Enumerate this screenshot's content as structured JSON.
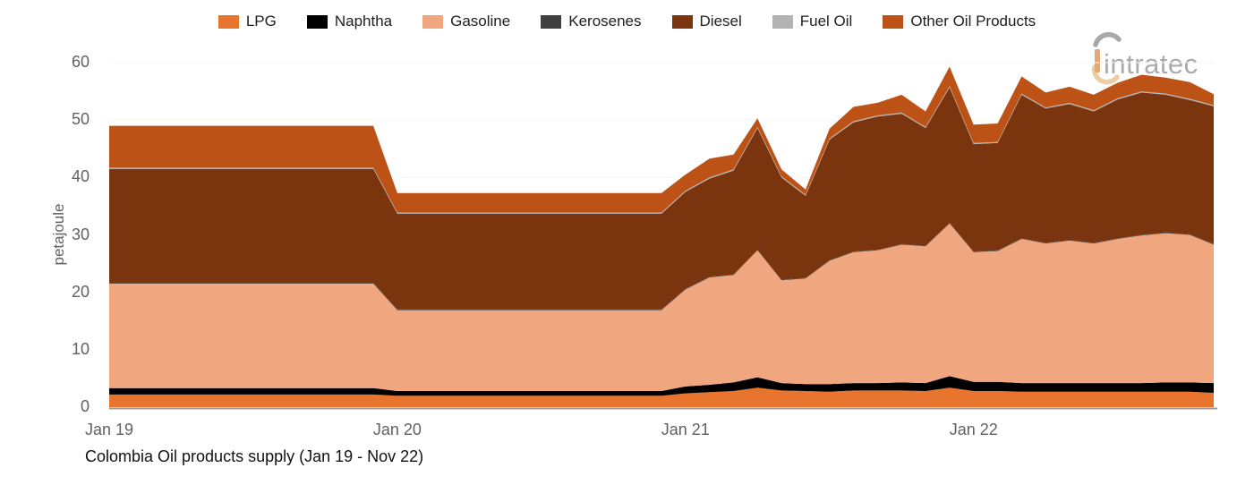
{
  "chart_data": {
    "type": "area",
    "stacked": true,
    "title": "Colombia Oil products supply (Jan 19 - Nov 22)",
    "xlabel": "",
    "ylabel": "petajoule",
    "ylim": [
      0,
      60
    ],
    "y_ticks": [
      0,
      10,
      20,
      30,
      40,
      50,
      60
    ],
    "grid": true,
    "legend_position": "top",
    "x": [
      "Jan 19",
      "Feb 19",
      "Mar 19",
      "Apr 19",
      "May 19",
      "Jun 19",
      "Jul 19",
      "Aug 19",
      "Sep 19",
      "Oct 19",
      "Nov 19",
      "Dec 19",
      "Jan 20",
      "Feb 20",
      "Mar 20",
      "Apr 20",
      "May 20",
      "Jun 20",
      "Jul 20",
      "Aug 20",
      "Sep 20",
      "Oct 20",
      "Nov 20",
      "Dec 20",
      "Jan 21",
      "Feb 21",
      "Mar 21",
      "Apr 21",
      "May 21",
      "Jun 21",
      "Jul 21",
      "Aug 21",
      "Sep 21",
      "Oct 21",
      "Nov 21",
      "Dec 21",
      "Jan 22",
      "Feb 22",
      "Mar 22",
      "Apr 22",
      "May 22",
      "Jun 22",
      "Jul 22",
      "Aug 22",
      "Sep 22",
      "Oct 22",
      "Nov 22"
    ],
    "x_tick_labels": [
      {
        "label": "Jan 19",
        "month_index": 0
      },
      {
        "label": "Jan 20",
        "month_index": 12
      },
      {
        "label": "Jan 21",
        "month_index": 24
      },
      {
        "label": "Jan 22",
        "month_index": 36
      }
    ],
    "series": [
      {
        "name": "LPG",
        "color": "#E8752D",
        "values": [
          2.2,
          2.2,
          2.2,
          2.2,
          2.2,
          2.2,
          2.2,
          2.2,
          2.2,
          2.2,
          2.2,
          2.2,
          2.0,
          2.0,
          2.0,
          2.0,
          2.0,
          2.0,
          2.0,
          2.0,
          2.0,
          2.0,
          2.0,
          2.0,
          2.4,
          2.6,
          2.8,
          3.4,
          2.9,
          2.8,
          2.7,
          2.9,
          2.9,
          2.9,
          2.8,
          3.4,
          2.8,
          2.8,
          2.7,
          2.7,
          2.7,
          2.7,
          2.7,
          2.7,
          2.7,
          2.7,
          2.5
        ]
      },
      {
        "name": "Naphtha",
        "color": "#000000",
        "values": [
          1.1,
          1.1,
          1.1,
          1.1,
          1.1,
          1.1,
          1.1,
          1.1,
          1.1,
          1.1,
          1.1,
          1.1,
          0.8,
          0.8,
          0.8,
          0.8,
          0.8,
          0.8,
          0.8,
          0.8,
          0.8,
          0.8,
          0.8,
          0.8,
          1.2,
          1.3,
          1.5,
          1.8,
          1.3,
          1.2,
          1.3,
          1.3,
          1.3,
          1.4,
          1.4,
          2.0,
          1.6,
          1.6,
          1.5,
          1.5,
          1.5,
          1.5,
          1.5,
          1.5,
          1.6,
          1.6,
          1.7
        ]
      },
      {
        "name": "Gasoline",
        "color": "#F0A67F",
        "values": [
          18.2,
          18.2,
          18.2,
          18.2,
          18.2,
          18.2,
          18.2,
          18.2,
          18.2,
          18.2,
          18.2,
          18.2,
          14.1,
          14.1,
          14.1,
          14.1,
          14.1,
          14.1,
          14.1,
          14.1,
          14.1,
          14.1,
          14.1,
          14.1,
          16.9,
          18.7,
          18.7,
          22.1,
          17.9,
          18.4,
          21.5,
          22.8,
          23.1,
          24.0,
          23.8,
          26.6,
          22.6,
          22.8,
          25.1,
          24.3,
          24.8,
          24.3,
          25.1,
          25.7,
          26.0,
          25.7,
          24.1
        ]
      },
      {
        "name": "Kerosenes",
        "color": "#404040",
        "values": [
          0.1,
          0.1,
          0.1,
          0.1,
          0.1,
          0.1,
          0.1,
          0.1,
          0.1,
          0.1,
          0.1,
          0.1,
          0.1,
          0.1,
          0.1,
          0.1,
          0.1,
          0.1,
          0.1,
          0.1,
          0.1,
          0.1,
          0.1,
          0.1,
          0.1,
          0.1,
          0.1,
          0.1,
          0.1,
          0.1,
          0.1,
          0.1,
          0.1,
          0.1,
          0.1,
          0.1,
          0.1,
          0.1,
          0.1,
          0.1,
          0.1,
          0.1,
          0.1,
          0.1,
          0.1,
          0.1,
          0.1
        ]
      },
      {
        "name": "Diesel",
        "color": "#7B350E",
        "values": [
          19.9,
          19.9,
          19.9,
          19.9,
          19.9,
          19.9,
          19.9,
          19.9,
          19.9,
          19.9,
          19.9,
          19.9,
          16.7,
          16.7,
          16.7,
          16.7,
          16.7,
          16.7,
          16.7,
          16.7,
          16.7,
          16.7,
          16.7,
          16.7,
          16.9,
          17.1,
          18.1,
          21.2,
          17.8,
          14.3,
          21.0,
          22.5,
          23.2,
          22.7,
          20.5,
          23.6,
          18.7,
          18.7,
          25.0,
          23.4,
          23.7,
          22.9,
          24.2,
          24.8,
          24.0,
          23.4,
          24.0
        ]
      },
      {
        "name": "Fuel Oil",
        "color": "#B3B3B3",
        "values": [
          0.2,
          0.2,
          0.2,
          0.2,
          0.2,
          0.2,
          0.2,
          0.2,
          0.2,
          0.2,
          0.2,
          0.2,
          0.2,
          0.2,
          0.2,
          0.2,
          0.2,
          0.2,
          0.2,
          0.2,
          0.2,
          0.2,
          0.2,
          0.2,
          0.2,
          0.2,
          0.2,
          0.2,
          0.2,
          0.2,
          0.2,
          0.2,
          0.2,
          0.2,
          0.2,
          0.2,
          0.2,
          0.2,
          0.2,
          0.2,
          0.2,
          0.2,
          0.2,
          0.2,
          0.2,
          0.2,
          0.2
        ]
      },
      {
        "name": "Other Oil Products",
        "color": "#BC5215",
        "values": [
          7.3,
          7.3,
          7.3,
          7.3,
          7.3,
          7.3,
          7.3,
          7.3,
          7.3,
          7.3,
          7.3,
          7.3,
          3.4,
          3.4,
          3.4,
          3.4,
          3.4,
          3.4,
          3.4,
          3.4,
          3.4,
          3.4,
          3.4,
          3.4,
          2.8,
          3.3,
          2.6,
          1.5,
          1.2,
          0.9,
          1.7,
          2.5,
          2.2,
          3.1,
          2.7,
          3.4,
          3.2,
          3.2,
          3.0,
          2.6,
          2.8,
          2.7,
          2.7,
          2.9,
          2.8,
          2.9,
          1.9
        ]
      }
    ]
  },
  "logo": {
    "text": "intratec"
  },
  "styles": {
    "axis_line_color": "#9E9E9E",
    "grid_color": "#F5F5F5",
    "tick_text_color": "#616161",
    "logo_text_color": "#ABABAB",
    "logo_arc_gray": "#A8A8A8",
    "logo_arc_tan": "#ECCDA5",
    "logo_bar_tan": "#E2A977"
  }
}
